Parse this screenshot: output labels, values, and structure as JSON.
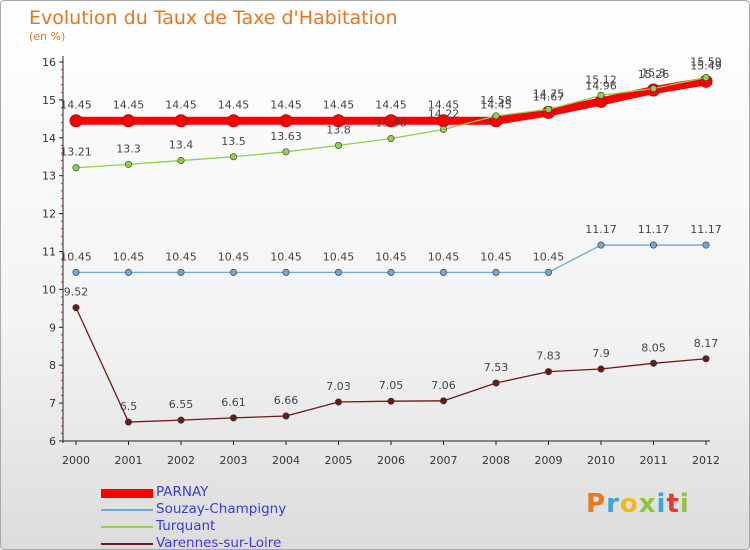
{
  "title": "Evolution du Taux de Taxe d'Habitation",
  "unit": "(en %)",
  "logo": "Proxiti",
  "logo_colors": [
    "#e87a1e",
    "#3aa6dd",
    "#f2b81b",
    "#8cc63f",
    "#3aa6dd",
    "#e23b2f",
    "#8cc63f"
  ],
  "chart_data": {
    "type": "line",
    "x": [
      "2000",
      "2001",
      "2002",
      "2003",
      "2004",
      "2005",
      "2006",
      "2007",
      "2008",
      "2009",
      "2010",
      "2011",
      "2012"
    ],
    "yticks": [
      "6",
      "7",
      "8",
      "9",
      "10",
      "11",
      "12",
      "13",
      "14",
      "15",
      "16"
    ],
    "ylim": [
      6,
      16
    ],
    "grid": false,
    "legend_position": "bottom-left",
    "series": [
      {
        "name": "PARNAY",
        "color": "#ff0000",
        "values": [
          14.45,
          14.45,
          14.45,
          14.45,
          14.45,
          14.45,
          14.45,
          14.45,
          14.45,
          14.67,
          14.96,
          15.26,
          15.49
        ],
        "labels": [
          "14.45",
          "14.45",
          "14.45",
          "14.45",
          "14.45",
          "14.45",
          "14.45",
          "14.45",
          "14.45",
          "14.67",
          "14.96",
          "15.26",
          "15.49"
        ]
      },
      {
        "name": "Souzay-Champigny",
        "color": "#6fa8d6",
        "values": [
          10.45,
          10.45,
          10.45,
          10.45,
          10.45,
          10.45,
          10.45,
          10.45,
          10.45,
          10.45,
          11.17,
          11.17,
          11.17
        ],
        "labels": [
          "10.45",
          "10.45",
          "10.45",
          "10.45",
          "10.45",
          "10.45",
          "10.45",
          "10.45",
          "10.45",
          "10.45",
          "11.17",
          "11.17",
          "11.17"
        ]
      },
      {
        "name": "Turquant",
        "color": "#8fd14f",
        "values": [
          13.21,
          13.3,
          13.4,
          13.5,
          13.63,
          13.8,
          13.98,
          14.22,
          14.58,
          14.75,
          15.12,
          15.3,
          15.59
        ],
        "labels": [
          "13.21",
          "13.3",
          "13.4",
          "13.5",
          "13.63",
          "13.8",
          "13.98",
          "14.22",
          "14.58",
          "14.75",
          "15.12",
          "15.3",
          "15.59"
        ]
      },
      {
        "name": "Varennes-sur-Loire",
        "color": "#6b1a1a",
        "values": [
          9.52,
          6.5,
          6.55,
          6.61,
          6.66,
          7.03,
          7.05,
          7.06,
          7.53,
          7.83,
          7.9,
          8.05,
          8.17
        ],
        "labels": [
          "9.52",
          "6.5",
          "6.55",
          "6.61",
          "6.66",
          "7.03",
          "7.05",
          "7.06",
          "7.53",
          "7.83",
          "7.9",
          "8.05",
          "8.17"
        ]
      }
    ]
  }
}
